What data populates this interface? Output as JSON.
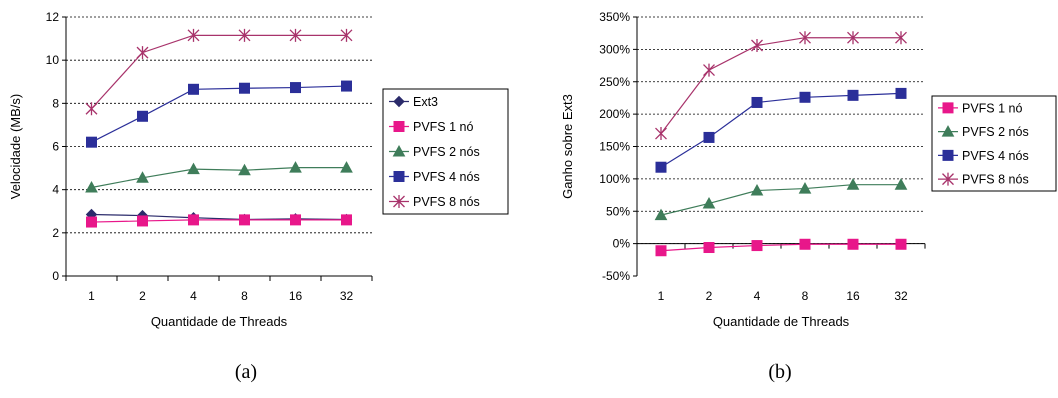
{
  "chart_data": [
    {
      "type": "line",
      "caption": "(a)",
      "categories": [
        "1",
        "2",
        "4",
        "8",
        "16",
        "32"
      ],
      "xlabel": "Quantidade de Threads",
      "ylabel": "Velocidade (MB/s)",
      "ylim": [
        0,
        12
      ],
      "yticks": [
        "0",
        "2",
        "4",
        "6",
        "8",
        "10",
        "12"
      ],
      "grid": "horizontal dashed",
      "legend": "right",
      "series": [
        {
          "name": "Ext3",
          "marker": "diamond",
          "color": "#2b2b6b",
          "values": [
            2.85,
            2.8,
            2.7,
            2.62,
            2.65,
            2.62
          ]
        },
        {
          "name": "PVFS 1 nó",
          "marker": "square",
          "color": "#e8178a",
          "values": [
            2.5,
            2.55,
            2.6,
            2.6,
            2.6,
            2.6
          ]
        },
        {
          "name": "PVFS 2 nós",
          "marker": "triangle",
          "color": "#3f7d5a",
          "values": [
            4.1,
            4.55,
            4.95,
            4.9,
            5.02,
            5.02
          ]
        },
        {
          "name": "PVFS 4 nós",
          "marker": "square",
          "color": "#2b2f99",
          "values": [
            6.2,
            7.4,
            8.65,
            8.7,
            8.73,
            8.8
          ]
        },
        {
          "name": "PVFS 8 nós",
          "marker": "asterisk",
          "color": "#a8336b",
          "values": [
            7.75,
            10.35,
            11.15,
            11.15,
            11.15,
            11.15
          ]
        }
      ]
    },
    {
      "type": "line",
      "caption": "(b)",
      "categories": [
        "1",
        "2",
        "4",
        "8",
        "16",
        "32"
      ],
      "xlabel": "Quantidade de Threads",
      "ylabel": "Ganho sobre Ext3",
      "ylim": [
        -50,
        350
      ],
      "yticks": [
        "-50%",
        "0%",
        "50%",
        "100%",
        "150%",
        "200%",
        "250%",
        "300%",
        "350%"
      ],
      "grid": "horizontal dashed",
      "legend": "right",
      "series": [
        {
          "name": "PVFS 1 nó",
          "marker": "square",
          "color": "#e8178a",
          "values": [
            -11,
            -6,
            -3,
            -1,
            -1,
            -1
          ]
        },
        {
          "name": "PVFS 2 nós",
          "marker": "triangle",
          "color": "#3f7d5a",
          "values": [
            44,
            62,
            82,
            85,
            91,
            91
          ]
        },
        {
          "name": "PVFS 4 nós",
          "marker": "square",
          "color": "#2b2f99",
          "values": [
            118,
            164,
            218,
            226,
            229,
            232
          ]
        },
        {
          "name": "PVFS 8 nós",
          "marker": "asterisk",
          "color": "#a8336b",
          "values": [
            170,
            268,
            306,
            318,
            318,
            318
          ]
        }
      ]
    }
  ]
}
